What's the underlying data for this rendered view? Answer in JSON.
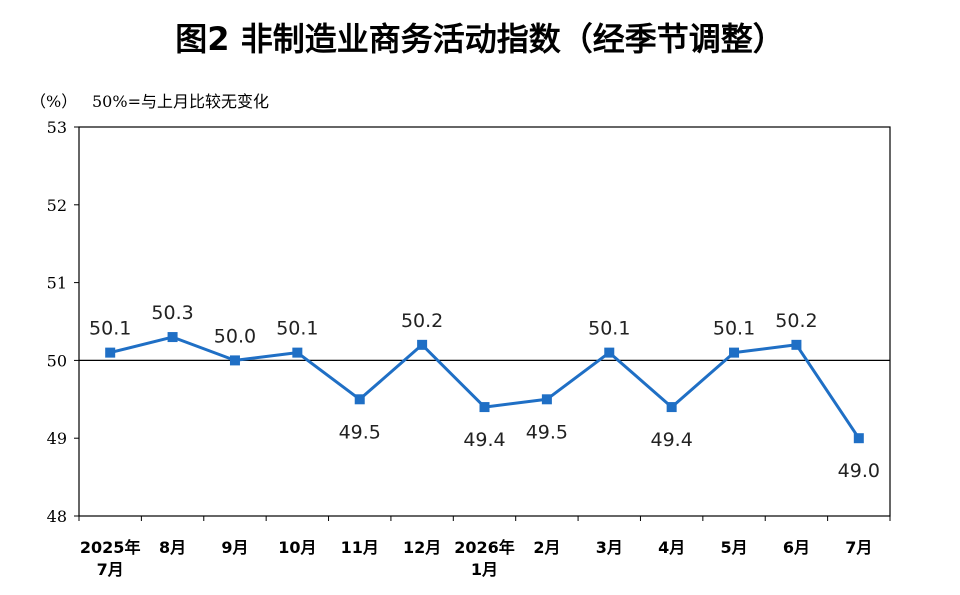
{
  "chart": {
    "title": "图2  非制造业商务活动指数（经季节调整）",
    "unit_label": "（%）",
    "note": "50%=与上月比较无变化"
  },
  "chart_data": {
    "type": "line",
    "title": "图2  非制造业商务活动指数（经季节调整）",
    "ylabel": "（%）",
    "categories": [
      [
        "2025年",
        "7月"
      ],
      [
        "8月"
      ],
      [
        "9月"
      ],
      [
        "10月"
      ],
      [
        "11月"
      ],
      [
        "12月"
      ],
      [
        "2026年",
        "1月"
      ],
      [
        "2月"
      ],
      [
        "3月"
      ],
      [
        "4月"
      ],
      [
        "5月"
      ],
      [
        "6月"
      ],
      [
        "7月"
      ]
    ],
    "series": [
      {
        "values": [
          50.1,
          50.3,
          50.0,
          50.1,
          49.5,
          50.2,
          49.4,
          49.5,
          50.1,
          49.4,
          50.1,
          50.2,
          49.0
        ]
      }
    ],
    "ylim": [
      48,
      53
    ],
    "yticks": [
      48,
      49,
      50,
      51,
      52,
      53
    ],
    "reference_line": 50,
    "label_positions": [
      "above",
      "above",
      "above",
      "above",
      "below",
      "above",
      "below",
      "below",
      "above",
      "below",
      "above",
      "above",
      "below"
    ],
    "line_color": "#1f6fc5",
    "grid": false
  }
}
